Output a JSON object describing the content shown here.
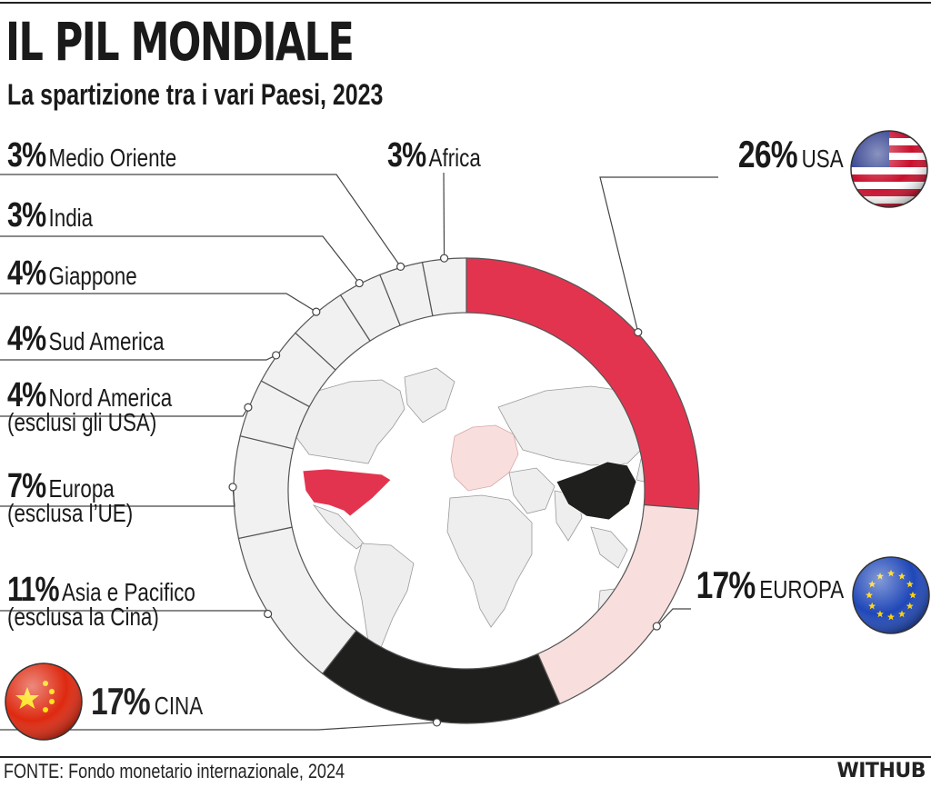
{
  "header": {
    "title": "IL PIL MONDIALE",
    "subtitle": "La spartizione tra i vari Paesi, 2023"
  },
  "footer": {
    "source": "FONTE: Fondo monetario internazionale, 2024",
    "brand": "WITHUB"
  },
  "colors": {
    "usa": "#e3344f",
    "europa": "#f9dede",
    "cina": "#1f1f1d",
    "other": "#f1f1f1",
    "outline": "#555555"
  },
  "chart_data": {
    "type": "pie",
    "title": "IL PIL MONDIALE",
    "subtitle": "La spartizione tra i vari Paesi, 2023",
    "unit": "%",
    "slices": [
      {
        "name": "USA",
        "value": 26,
        "label": "26%",
        "display": "USA",
        "color": "#e3344f"
      },
      {
        "name": "Europa",
        "value": 17,
        "label": "17%",
        "display": "EUROPA",
        "color": "#f9dede"
      },
      {
        "name": "Cina",
        "value": 17,
        "label": "17%",
        "display": "CINA",
        "color": "#1f1f1d"
      },
      {
        "name": "Asia e Pacifico",
        "value": 11,
        "label": "11%",
        "display": "Asia e Pacifico",
        "note": "(esclusa la Cina)",
        "color": "#f1f1f1"
      },
      {
        "name": "Europa (esclusa l’UE)",
        "value": 7,
        "label": "7%",
        "display": "Europa",
        "note": "(esclusa l’UE)",
        "color": "#f1f1f1"
      },
      {
        "name": "Nord America",
        "value": 4,
        "label": "4%",
        "display": "Nord America",
        "note": "(esclusi gli USA)",
        "color": "#f1f1f1"
      },
      {
        "name": "Sud America",
        "value": 4,
        "label": "4%",
        "display": "Sud America",
        "color": "#f1f1f1"
      },
      {
        "name": "Giappone",
        "value": 4,
        "label": "4%",
        "display": "Giappone",
        "color": "#f1f1f1"
      },
      {
        "name": "India",
        "value": 3,
        "label": "3%",
        "display": "India",
        "color": "#f1f1f1"
      },
      {
        "name": "Medio Oriente",
        "value": 3,
        "label": "3%",
        "display": "Medio Oriente",
        "color": "#f1f1f1"
      },
      {
        "name": "Africa",
        "value": 3,
        "label": "3%",
        "display": "Africa",
        "color": "#f1f1f1"
      }
    ]
  }
}
